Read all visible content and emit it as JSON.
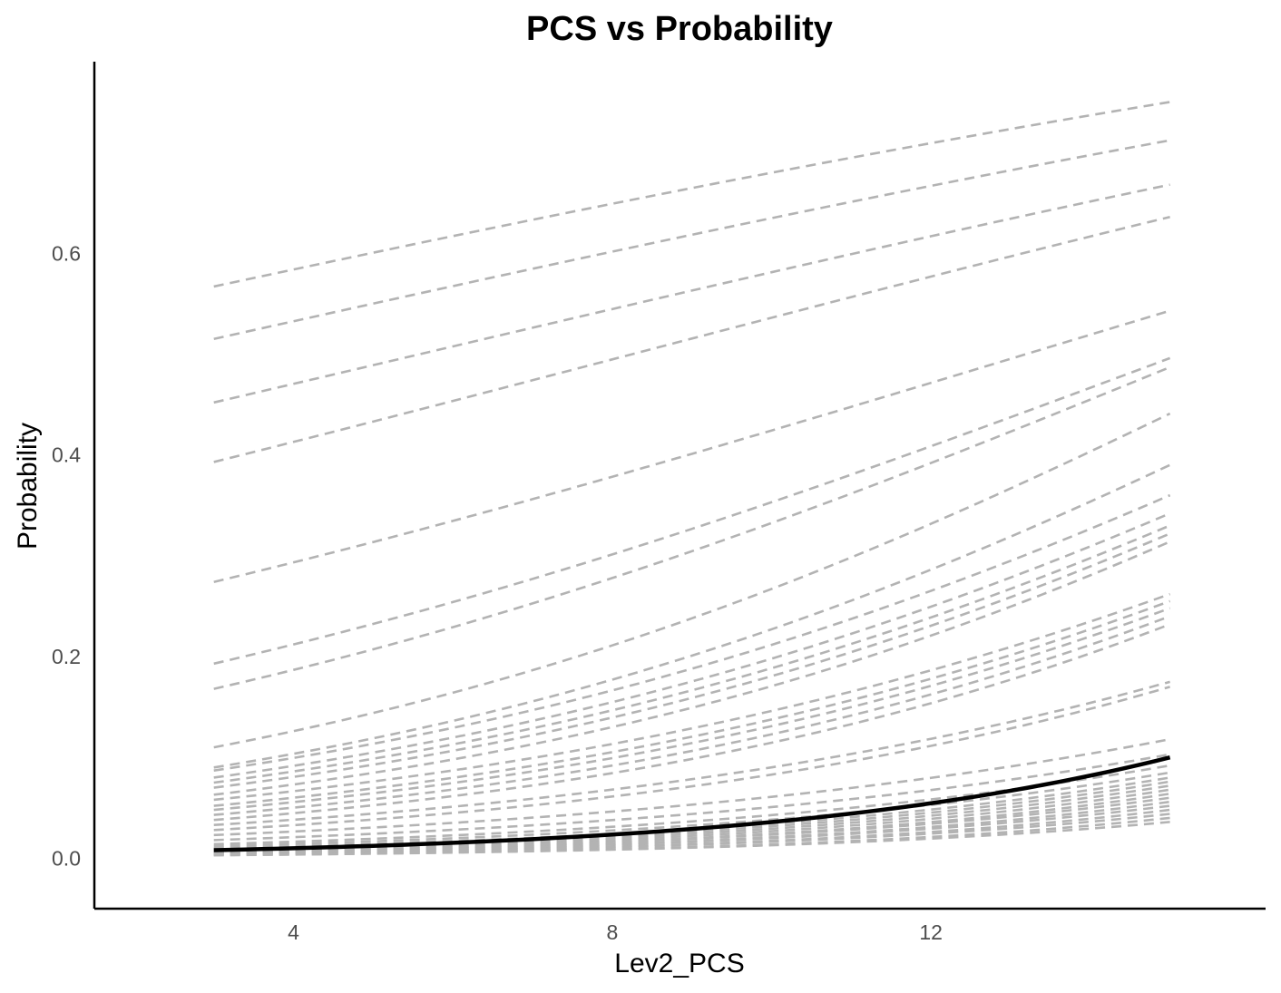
{
  "chart_data": {
    "type": "line",
    "title": "PCS vs Probability",
    "xlabel": "Lev2_PCS",
    "ylabel": "Probability",
    "xlim": [
      1.5,
      16.2
    ],
    "ylim": [
      -0.05,
      0.79
    ],
    "x_ticks": [
      4,
      8,
      12
    ],
    "x_tick_labels": [
      "4",
      "8",
      "12"
    ],
    "y_ticks": [
      0.0,
      0.2,
      0.4,
      0.6
    ],
    "y_tick_labels": [
      "0.0",
      "0.2",
      "0.4",
      "0.6"
    ],
    "grid": false,
    "legend": "none",
    "colors": {
      "dashed": "#b3b3b3",
      "solid": "#000000",
      "axis": "#000000",
      "tick_text": "#4d4d4d"
    },
    "x_range": [
      3,
      15
    ],
    "series": [
      {
        "style": "dashed",
        "start": 0.567,
        "end": 0.75
      },
      {
        "style": "dashed",
        "start": 0.515,
        "end": 0.712
      },
      {
        "style": "dashed",
        "start": 0.452,
        "end": 0.668
      },
      {
        "style": "dashed",
        "start": 0.393,
        "end": 0.636
      },
      {
        "style": "dashed",
        "start": 0.274,
        "end": 0.543
      },
      {
        "style": "dashed",
        "start": 0.193,
        "end": 0.496
      },
      {
        "style": "dashed",
        "start": 0.168,
        "end": 0.487
      },
      {
        "style": "dashed",
        "start": 0.11,
        "end": 0.441
      },
      {
        "style": "dashed",
        "start": 0.09,
        "end": 0.39
      },
      {
        "style": "dashed",
        "start": 0.087,
        "end": 0.36
      },
      {
        "style": "dashed",
        "start": 0.08,
        "end": 0.342
      },
      {
        "style": "dashed",
        "start": 0.075,
        "end": 0.33
      },
      {
        "style": "dashed",
        "start": 0.07,
        "end": 0.322
      },
      {
        "style": "dashed",
        "start": 0.063,
        "end": 0.314
      },
      {
        "style": "dashed",
        "start": 0.058,
        "end": 0.262
      },
      {
        "style": "dashed",
        "start": 0.052,
        "end": 0.255
      },
      {
        "style": "dashed",
        "start": 0.048,
        "end": 0.248
      },
      {
        "style": "dashed",
        "start": 0.043,
        "end": 0.24
      },
      {
        "style": "dashed",
        "start": 0.038,
        "end": 0.232
      },
      {
        "style": "dashed",
        "start": 0.033,
        "end": 0.175
      },
      {
        "style": "dashed",
        "start": 0.028,
        "end": 0.17
      },
      {
        "style": "dashed",
        "start": 0.023,
        "end": 0.118
      },
      {
        "style": "dashed",
        "start": 0.018,
        "end": 0.103
      },
      {
        "style": "dashed",
        "start": 0.014,
        "end": 0.092
      },
      {
        "style": "dashed",
        "start": 0.012,
        "end": 0.085
      },
      {
        "style": "dashed",
        "start": 0.01,
        "end": 0.08
      },
      {
        "style": "dashed",
        "start": 0.009,
        "end": 0.076
      },
      {
        "style": "dashed",
        "start": 0.008,
        "end": 0.072
      },
      {
        "style": "dashed",
        "start": 0.007,
        "end": 0.068
      },
      {
        "style": "dashed",
        "start": 0.006,
        "end": 0.064
      },
      {
        "style": "dashed",
        "start": 0.006,
        "end": 0.06
      },
      {
        "style": "dashed",
        "start": 0.005,
        "end": 0.056
      },
      {
        "style": "dashed",
        "start": 0.005,
        "end": 0.052
      },
      {
        "style": "dashed",
        "start": 0.004,
        "end": 0.048
      },
      {
        "style": "dashed",
        "start": 0.004,
        "end": 0.044
      },
      {
        "style": "dashed",
        "start": 0.003,
        "end": 0.04
      },
      {
        "style": "dashed",
        "start": 0.003,
        "end": 0.036
      },
      {
        "style": "solid",
        "start": 0.008,
        "end": 0.1
      }
    ]
  }
}
